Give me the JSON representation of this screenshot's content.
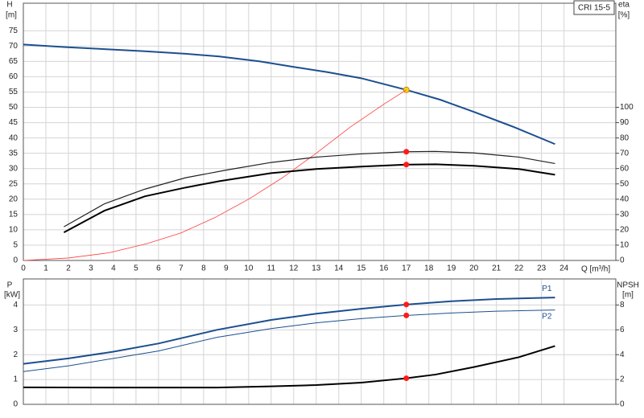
{
  "chart_data": [
    {
      "type": "line",
      "box_label": "CRI 15-5",
      "ylabel": "H",
      "yunit": "[m]",
      "y2label": "eta",
      "y2unit": "[%]",
      "xlabel": "Q [m³/h]",
      "xlim": [
        0,
        26.3
      ],
      "xticks": [
        0,
        1,
        2,
        3,
        4,
        5,
        6,
        7,
        8,
        9,
        10,
        11,
        12,
        13,
        14,
        15,
        16,
        17,
        18,
        19,
        20,
        21,
        22,
        23,
        24
      ],
      "ylim": [
        0,
        84
      ],
      "yticks": [
        0,
        5,
        10,
        15,
        20,
        25,
        30,
        35,
        40,
        45,
        50,
        55,
        60,
        65,
        70,
        75
      ],
      "y2lim": [
        0,
        168
      ],
      "y2ticks": [
        0,
        10,
        20,
        30,
        40,
        50,
        60,
        70,
        80,
        90,
        100
      ],
      "grid": true,
      "operating_q": 17,
      "series": [
        {
          "color": "#1c4f8f",
          "line_width": 2,
          "marker_color": "#ffd21f",
          "x": [
            0,
            1.8,
            3.6,
            5.4,
            7.2,
            8.7,
            10.5,
            12,
            13.5,
            15,
            17,
            18.5,
            20,
            21.8,
            23.6
          ],
          "values": [
            70.5,
            69.7,
            69,
            68.3,
            67.5,
            66.6,
            65,
            63.2,
            61.5,
            59.5,
            55.7,
            52.5,
            48.5,
            43.5,
            38
          ]
        },
        {
          "color": "#ff3b3b",
          "line_width": 0.8,
          "x": [
            0,
            2,
            3.8,
            5.5,
            7,
            8.5,
            10,
            11.5,
            13,
            14.5,
            16,
            17
          ],
          "values": [
            0,
            0.8,
            2.5,
            5.5,
            9,
            14,
            20,
            27,
            35,
            43.5,
            51,
            55.7
          ]
        },
        {
          "color": "#222222",
          "line_width": 1.2,
          "axis": "y2",
          "marker_color": "#ff1a1a",
          "x": [
            1.8,
            3.6,
            5.4,
            7.2,
            9,
            11,
            13,
            15,
            17,
            18.3,
            20,
            22,
            23.6
          ],
          "values": [
            22,
            37,
            46.6,
            54,
            59,
            64,
            67.5,
            69.6,
            71,
            71.2,
            70.2,
            67.5,
            63.3
          ]
        },
        {
          "color": "#000000",
          "line_width": 2,
          "axis": "y2",
          "marker_color": "#ff1a1a",
          "x": [
            1.8,
            3.6,
            5.4,
            7.2,
            8.7,
            11,
            13,
            15,
            17,
            18.3,
            20,
            22,
            23.6
          ],
          "values": [
            18.3,
            32.5,
            41.9,
            47.6,
            51.8,
            57,
            59.7,
            61.3,
            62.6,
            62.8,
            61.8,
            59.7,
            56
          ]
        }
      ]
    },
    {
      "type": "line",
      "ylabel": "P",
      "yunit": "[kW]",
      "y2label": "NPSH",
      "y2unit": "[m]",
      "xlim": [
        0,
        26.3
      ],
      "ylim": [
        0,
        5.05
      ],
      "yticks": [
        0,
        1,
        2,
        3,
        4
      ],
      "y2lim": [
        0,
        10.1
      ],
      "y2ticks": [
        0,
        2,
        4,
        6,
        8
      ],
      "grid": true,
      "operating_q": 17,
      "series": [
        {
          "name": "P1",
          "color": "#1c4f8f",
          "line_width": 2,
          "marker_color": "#ff1a1a",
          "x": [
            0,
            2,
            4,
            6,
            8.6,
            11,
            13,
            15,
            17,
            19,
            21,
            23.6
          ],
          "values": [
            1.63,
            1.85,
            2.12,
            2.45,
            3.0,
            3.4,
            3.65,
            3.85,
            4.02,
            4.15,
            4.24,
            4.3
          ]
        },
        {
          "name": "P2",
          "color": "#1c4f8f",
          "line_width": 1,
          "marker_color": "#ff1a1a",
          "x": [
            0,
            2,
            4,
            6,
            8.6,
            11,
            13,
            15,
            17,
            19,
            21,
            23.6
          ],
          "values": [
            1.32,
            1.55,
            1.85,
            2.15,
            2.7,
            3.05,
            3.28,
            3.45,
            3.58,
            3.68,
            3.75,
            3.8
          ]
        },
        {
          "color": "#000000",
          "line_width": 2,
          "axis": "y2",
          "marker_color": "#ff1a1a",
          "x": [
            0,
            4,
            8.6,
            11,
            13,
            15,
            17,
            18.3,
            20,
            22,
            23.6
          ],
          "values": [
            1.37,
            1.35,
            1.35,
            1.45,
            1.55,
            1.75,
            2.1,
            2.4,
            3.0,
            3.8,
            4.7
          ]
        }
      ]
    }
  ]
}
